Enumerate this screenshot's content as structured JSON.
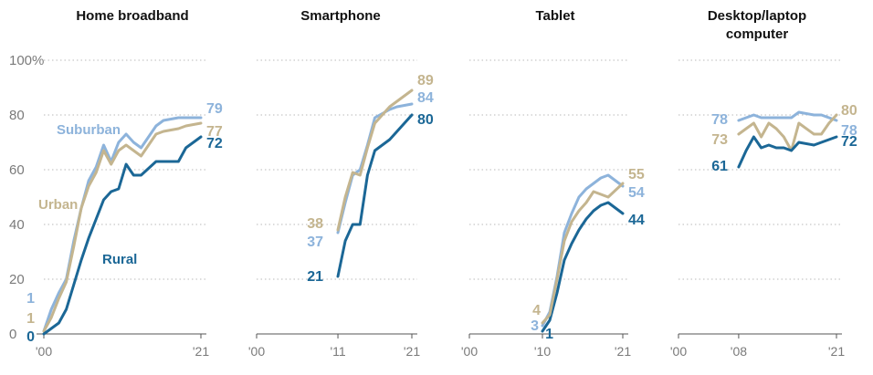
{
  "colors": {
    "Rural": "#1b6796",
    "Urban": "#c4b58f",
    "Suburban": "#8db3db"
  },
  "y_ticks": [
    "0",
    "20",
    "40",
    "60",
    "80",
    "100%"
  ],
  "chart_data": [
    {
      "type": "line",
      "title": "Home broadband",
      "title_lines": [
        "Home broadband"
      ],
      "xlim": [
        2000,
        2021
      ],
      "ylim": [
        0,
        100
      ],
      "x_ticks": [
        {
          "value": 2000,
          "label": "'00"
        },
        {
          "value": 2021,
          "label": "'21"
        }
      ],
      "x": [
        2000,
        2001,
        2002,
        2003,
        2004,
        2005,
        2006,
        2007,
        2008,
        2009,
        2010,
        2011,
        2012,
        2013,
        2015,
        2016,
        2018,
        2019,
        2021
      ],
      "series": [
        {
          "name": "Suburban",
          "values": [
            1,
            9,
            15,
            20,
            34,
            46,
            56,
            61,
            69,
            63,
            70,
            73,
            70,
            68,
            76,
            78,
            79,
            79,
            79
          ],
          "end_label": "79",
          "start_label": "1"
        },
        {
          "name": "Urban",
          "values": [
            1,
            6,
            13,
            19,
            32,
            46,
            54,
            59,
            67,
            62,
            67,
            69,
            67,
            65,
            73,
            74,
            75,
            76,
            77
          ],
          "end_label": "77",
          "start_label": "1"
        },
        {
          "name": "Rural",
          "values": [
            0,
            2,
            4,
            9,
            18,
            27,
            35,
            42,
            49,
            52,
            53,
            62,
            58,
            58,
            63,
            63,
            63,
            68,
            72
          ],
          "end_label": "72",
          "start_label": "0"
        }
      ],
      "series_labels": [
        {
          "text": "Suburban",
          "series": "Suburban"
        },
        {
          "text": "Urban",
          "series": "Urban"
        },
        {
          "text": "Rural",
          "series": "Rural"
        }
      ]
    },
    {
      "type": "line",
      "title": "Smartphone",
      "title_lines": [
        "Smartphone"
      ],
      "xlim": [
        2000,
        2021
      ],
      "ylim": [
        0,
        100
      ],
      "x_ticks": [
        {
          "value": 2000,
          "label": "'00"
        },
        {
          "value": 2011,
          "label": "'11"
        },
        {
          "value": 2021,
          "label": "'21"
        }
      ],
      "x": [
        2011,
        2012,
        2013,
        2014,
        2015,
        2016,
        2018,
        2019,
        2021
      ],
      "series": [
        {
          "name": "Rural",
          "values": [
            21,
            34,
            40,
            40,
            58,
            67,
            71,
            74,
            80
          ],
          "end_label": "80",
          "start_label": "21"
        },
        {
          "name": "Suburban",
          "values": [
            37,
            48,
            58,
            60,
            69,
            79,
            82,
            83,
            84
          ],
          "end_label": "84",
          "start_label": "37"
        },
        {
          "name": "Urban",
          "values": [
            38,
            50,
            59,
            58,
            68,
            77,
            83,
            85,
            89
          ],
          "end_label": "89",
          "start_label": "38"
        }
      ]
    },
    {
      "type": "line",
      "title": "Tablet",
      "title_lines": [
        "Tablet"
      ],
      "xlim": [
        2000,
        2021
      ],
      "ylim": [
        0,
        100
      ],
      "x_ticks": [
        {
          "value": 2000,
          "label": "'00"
        },
        {
          "value": 2010,
          "label": "'10"
        },
        {
          "value": 2021,
          "label": "'21"
        }
      ],
      "x": [
        2010,
        2011,
        2012,
        2013,
        2014,
        2015,
        2016,
        2017,
        2018,
        2019,
        2021
      ],
      "series": [
        {
          "name": "Rural",
          "values": [
            1,
            5,
            15,
            27,
            33,
            38,
            42,
            45,
            47,
            48,
            44
          ],
          "end_label": "44",
          "start_label": "1"
        },
        {
          "name": "Suburban",
          "values": [
            3,
            8,
            21,
            37,
            44,
            50,
            53,
            55,
            57,
            58,
            54
          ],
          "end_label": "54",
          "start_label": "3"
        },
        {
          "name": "Urban",
          "values": [
            4,
            7,
            20,
            34,
            41,
            45,
            48,
            52,
            51,
            50,
            55
          ],
          "end_label": "55",
          "start_label": "4"
        }
      ]
    },
    {
      "type": "line",
      "title": "Desktop/laptop computer",
      "title_lines": [
        "Desktop/laptop",
        "computer"
      ],
      "xlim": [
        2000,
        2021
      ],
      "ylim": [
        0,
        100
      ],
      "x_ticks": [
        {
          "value": 2000,
          "label": "'00"
        },
        {
          "value": 2008,
          "label": "'08"
        },
        {
          "value": 2021,
          "label": "'21"
        }
      ],
      "x": [
        2008,
        2009,
        2010,
        2011,
        2012,
        2013,
        2014,
        2015,
        2016,
        2018,
        2019,
        2020,
        2021
      ],
      "series": [
        {
          "name": "Suburban",
          "values": [
            78,
            79,
            80,
            79,
            79,
            79,
            79,
            79,
            81,
            80,
            80,
            79,
            78
          ],
          "end_label": "78",
          "start_label": "78"
        },
        {
          "name": "Urban",
          "values": [
            73,
            75,
            77,
            72,
            77,
            75,
            72,
            67,
            77,
            73,
            73,
            77,
            80
          ],
          "end_label": "80",
          "start_label": "73"
        },
        {
          "name": "Rural",
          "values": [
            61,
            67,
            72,
            68,
            69,
            68,
            68,
            67,
            70,
            69,
            70,
            71,
            72
          ],
          "end_label": "72",
          "start_label": "61"
        }
      ]
    }
  ]
}
